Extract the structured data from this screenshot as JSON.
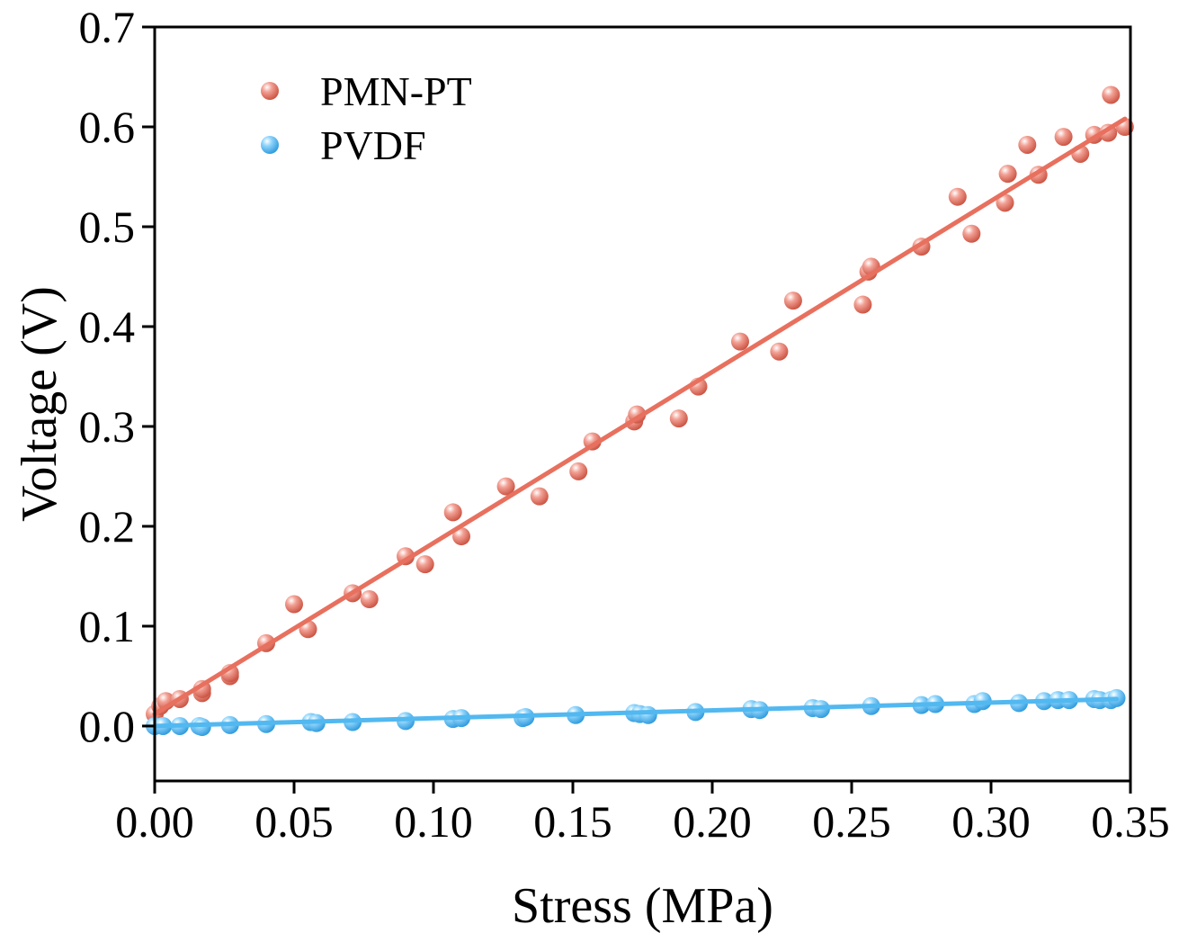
{
  "chart_data": {
    "type": "scatter",
    "title": "",
    "xlabel": "Stress (MPa)",
    "ylabel": "Voltage (V)",
    "xlim": [
      0.0,
      0.35
    ],
    "ylim": [
      -0.055,
      0.7
    ],
    "xticks": [
      0.0,
      0.05,
      0.1,
      0.15,
      0.2,
      0.25,
      0.3,
      0.35
    ],
    "xtick_labels": [
      "0.00",
      "0.05",
      "0.10",
      "0.15",
      "0.20",
      "0.25",
      "0.30",
      "0.35"
    ],
    "yticks": [
      0.0,
      0.1,
      0.2,
      0.3,
      0.4,
      0.5,
      0.6,
      0.7
    ],
    "ytick_labels": [
      "0.0",
      "0.1",
      "0.2",
      "0.3",
      "0.4",
      "0.5",
      "0.6",
      "0.7"
    ],
    "grid": false,
    "legend_position": "top-left",
    "series": [
      {
        "name": "PMN-PT",
        "color": "#e8705e",
        "fit_line": {
          "x": [
            0.0,
            0.348
          ],
          "y": [
            0.012,
            0.608
          ]
        },
        "x": [
          0.0,
          0.002,
          0.004,
          0.009,
          0.017,
          0.017,
          0.027,
          0.027,
          0.04,
          0.05,
          0.055,
          0.071,
          0.077,
          0.09,
          0.097,
          0.107,
          0.11,
          0.126,
          0.138,
          0.152,
          0.157,
          0.172,
          0.173,
          0.188,
          0.195,
          0.21,
          0.224,
          0.229,
          0.254,
          0.256,
          0.257,
          0.275,
          0.288,
          0.293,
          0.305,
          0.306,
          0.313,
          0.317,
          0.326,
          0.332,
          0.337,
          0.342,
          0.343,
          0.348
        ],
        "y": [
          0.012,
          0.02,
          0.025,
          0.027,
          0.033,
          0.037,
          0.05,
          0.053,
          0.083,
          0.122,
          0.097,
          0.133,
          0.127,
          0.17,
          0.162,
          0.214,
          0.19,
          0.24,
          0.23,
          0.255,
          0.285,
          0.305,
          0.312,
          0.308,
          0.34,
          0.385,
          0.375,
          0.426,
          0.422,
          0.455,
          0.46,
          0.48,
          0.53,
          0.493,
          0.524,
          0.553,
          0.582,
          0.552,
          0.59,
          0.573,
          0.592,
          0.594,
          0.632,
          0.6
        ]
      },
      {
        "name": "PVDF",
        "color": "#52b8f0",
        "fit_line": {
          "x": [
            0.0,
            0.345
          ],
          "y": [
            0.0,
            0.027
          ]
        },
        "x": [
          0.0,
          0.003,
          0.009,
          0.016,
          0.017,
          0.027,
          0.04,
          0.056,
          0.058,
          0.071,
          0.09,
          0.107,
          0.11,
          0.132,
          0.133,
          0.151,
          0.172,
          0.174,
          0.177,
          0.194,
          0.214,
          0.217,
          0.236,
          0.239,
          0.257,
          0.275,
          0.28,
          0.294,
          0.297,
          0.31,
          0.319,
          0.324,
          0.328,
          0.337,
          0.339,
          0.343,
          0.345
        ],
        "y": [
          0.0,
          0.0,
          0.0,
          0.0,
          -0.001,
          0.001,
          0.002,
          0.004,
          0.003,
          0.004,
          0.005,
          0.007,
          0.008,
          0.008,
          0.009,
          0.011,
          0.013,
          0.012,
          0.011,
          0.014,
          0.017,
          0.016,
          0.018,
          0.017,
          0.02,
          0.021,
          0.022,
          0.022,
          0.025,
          0.023,
          0.025,
          0.026,
          0.026,
          0.027,
          0.026,
          0.026,
          0.028
        ]
      }
    ]
  }
}
